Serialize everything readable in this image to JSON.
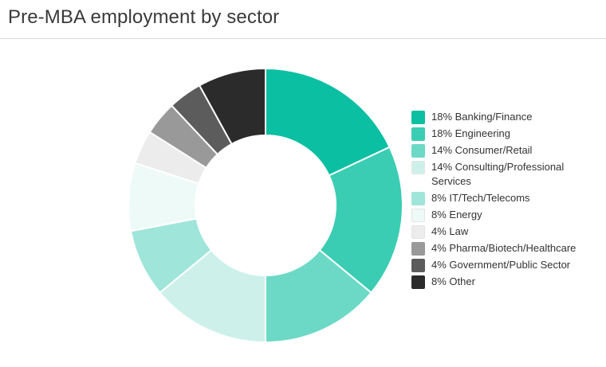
{
  "title": "Pre-MBA employment by sector",
  "chart_data": {
    "type": "pie",
    "variant": "donut",
    "title": "Pre-MBA employment by sector",
    "legend_position": "right",
    "categories": [
      "Banking/Finance",
      "Engineering",
      "Consumer/Retail",
      "Consulting/Professional Services",
      "IT/Tech/Telecoms",
      "Energy",
      "Law",
      "Pharma/Biotech/Healthcare",
      "Government/Public Sector",
      "Other"
    ],
    "values": [
      18,
      18,
      14,
      14,
      8,
      8,
      4,
      4,
      4,
      8
    ],
    "colors": [
      "#0bbfa2",
      "#3acdb3",
      "#6bd9c6",
      "#cdf1ea",
      "#9fe5da",
      "#eefaf8",
      "#ececec",
      "#999999",
      "#5c5c5c",
      "#2b2b2b"
    ],
    "legend": [
      "18% Banking/Finance",
      "18% Engineering",
      "14% Consumer/Retail",
      "14% Consulting/Professional Services",
      "8% IT/Tech/Telecoms",
      "8% Energy",
      "4% Law",
      "4% Pharma/Biotech/Healthcare",
      "4% Government/Public Sector",
      "8% Other"
    ]
  }
}
